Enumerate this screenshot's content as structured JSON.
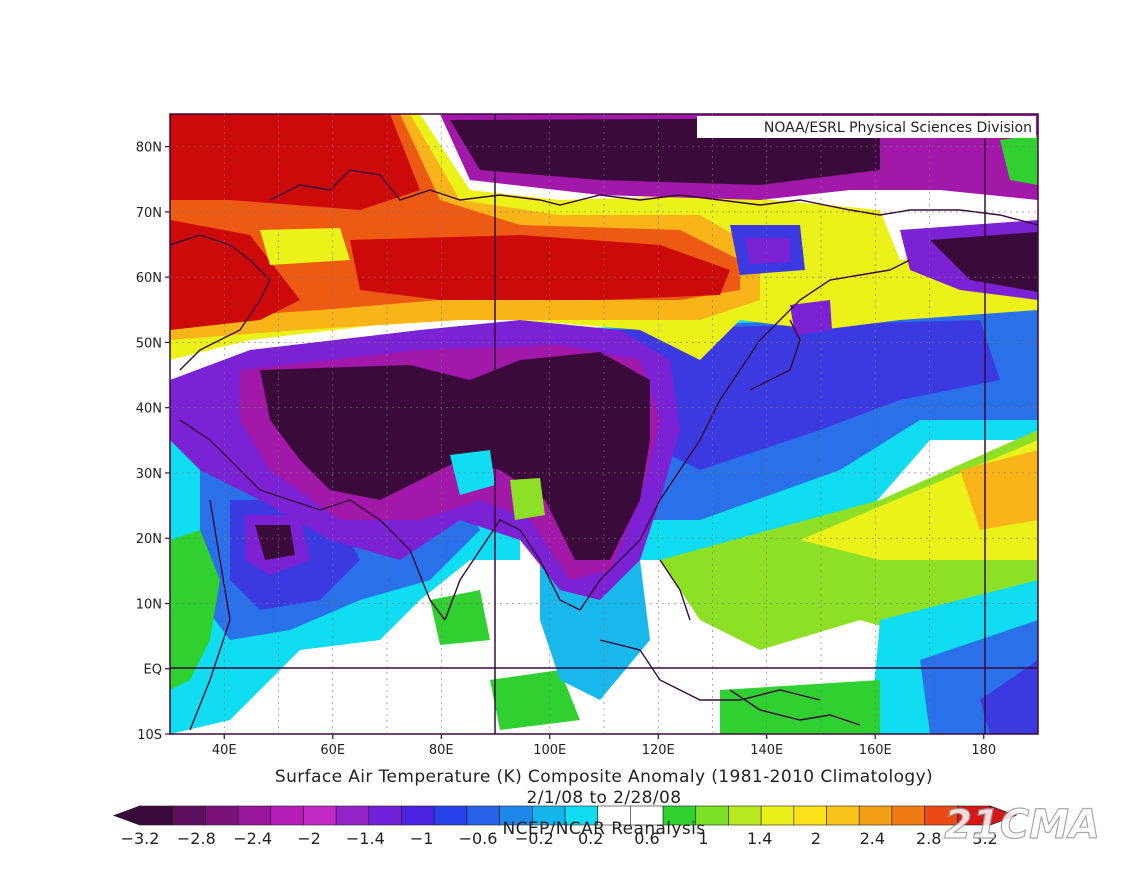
{
  "credit": "NOAA/ESRL Physical Sciences Division",
  "lat_ticks": [
    "80N",
    "70N",
    "60N",
    "50N",
    "40N",
    "30N",
    "20N",
    "10N",
    "EQ",
    "10S"
  ],
  "lon_ticks": [
    "40E",
    "60E",
    "80E",
    "100E",
    "120E",
    "140E",
    "160E",
    "180"
  ],
  "title_lines": [
    "Surface Air Temperature (K) Composite Anomaly (1981-2010 Climatology)",
    "2/1/08  to 2/28/08",
    "NCEP/NCAR Reanalysis"
  ],
  "watermark": "21CMA",
  "colorbar": {
    "labels": [
      "−3.2",
      "−2.8",
      "−2.4",
      "−2",
      "−1.4",
      "−1",
      "−0.6",
      "−0.2",
      "0.2",
      "0.6",
      "1",
      "1.4",
      "2",
      "2.4",
      "2.8",
      "3.2"
    ],
    "colors": [
      "#3a0a3a",
      "#5e0e5e",
      "#7a127a",
      "#9a169a",
      "#b61cb6",
      "#c228c2",
      "#9424c8",
      "#7020d8",
      "#4a22e0",
      "#2840ea",
      "#2862e8",
      "#1e88ea",
      "#14b4ec",
      "#10dcf2",
      "#ffffff",
      "#ffffff",
      "#2ed12e",
      "#7ce024",
      "#b6ea1e",
      "#e8f21a",
      "#fce21a",
      "#f8c418",
      "#f4a016",
      "#f07a14",
      "#ec4a14",
      "#d41818"
    ]
  },
  "field_colors": {
    "deep_neg": "#3a0a3a",
    "neg_magenta": "#a218a8",
    "neg_purple": "#7a22d4",
    "neg_blue": "#3a3ae0",
    "neg_mid_blue": "#2a70e8",
    "neg_light_blue": "#18b8ec",
    "neg_cyan": "#10dcf2",
    "neutral": "#ffffff",
    "pos_green": "#30d030",
    "pos_light_green": "#8ee026",
    "pos_yellow": "#eaf21a",
    "pos_orange": "#f8b418",
    "pos_red_orange": "#ec5a14",
    "pos_deep_red": "#cc0a0a",
    "coast_line": "#3a0a3a"
  }
}
